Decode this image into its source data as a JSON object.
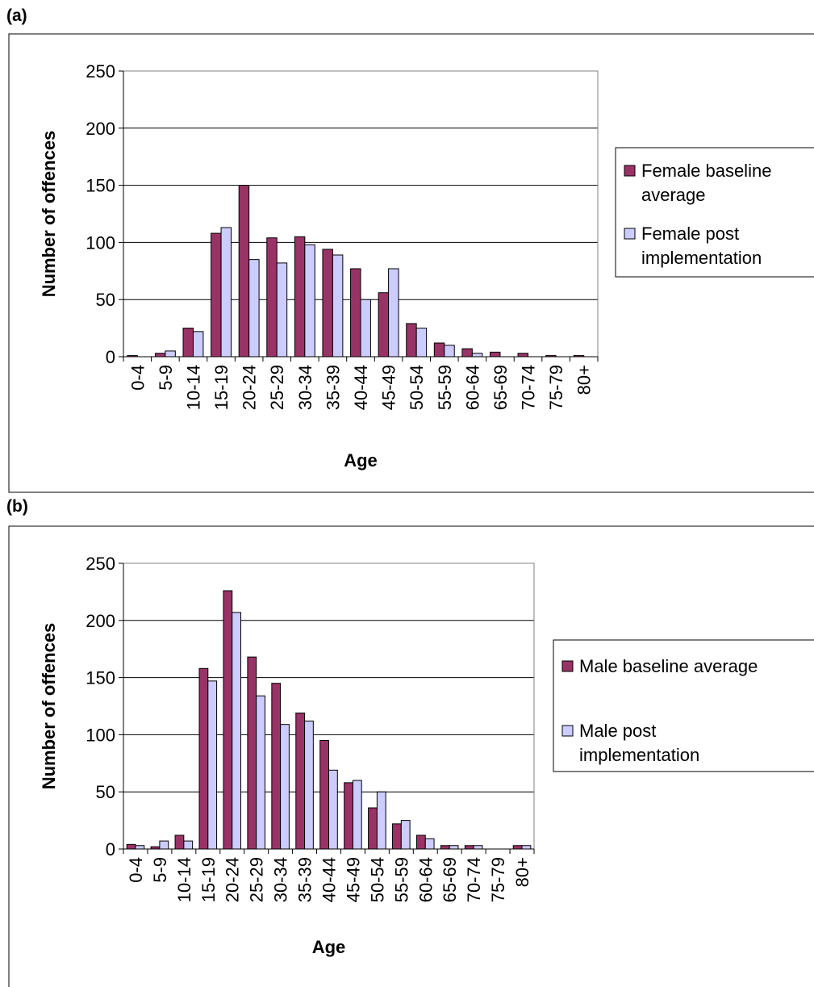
{
  "panels": [
    {
      "label": "(a)"
    },
    {
      "label": "(b)"
    }
  ],
  "chart_data": [
    {
      "type": "bar",
      "title": "",
      "xlabel": "Age",
      "ylabel": "Number of offences",
      "ylim": [
        0,
        250
      ],
      "yticks": [
        "0",
        "50",
        "100",
        "150",
        "200",
        "250"
      ],
      "grid": "horizontal",
      "legend_position": "right",
      "categories": [
        "0-4",
        "5-9",
        "10-14",
        "15-19",
        "20-24",
        "25-29",
        "30-34",
        "35-39",
        "40-44",
        "45-49",
        "50-54",
        "55-59",
        "60-64",
        "65-69",
        "70-74",
        "75-79",
        "80+"
      ],
      "series": [
        {
          "name": "Female baseline average",
          "legend_lines": [
            "Female baseline",
            "average"
          ],
          "color": "#993366",
          "values": [
            1,
            3,
            25,
            108,
            150,
            104,
            105,
            94,
            77,
            56,
            29,
            12,
            7,
            4,
            3,
            1,
            1
          ]
        },
        {
          "name": "Female post implementation",
          "legend_lines": [
            "Female post",
            "implementation"
          ],
          "color": "#CCCCFF",
          "values": [
            0,
            5,
            22,
            113,
            85,
            82,
            98,
            89,
            50,
            77,
            25,
            10,
            3,
            0,
            0,
            0,
            0
          ]
        }
      ]
    },
    {
      "type": "bar",
      "title": "",
      "xlabel": "Age",
      "ylabel": "Number of offences",
      "ylim": [
        0,
        250
      ],
      "yticks": [
        "0",
        "50",
        "100",
        "150",
        "200",
        "250"
      ],
      "grid": "horizontal",
      "legend_position": "right",
      "categories": [
        "0-4",
        "5-9",
        "10-14",
        "15-19",
        "20-24",
        "25-29",
        "30-34",
        "35-39",
        "40-44",
        "45-49",
        "50-54",
        "55-59",
        "60-64",
        "65-69",
        "70-74",
        "75-79",
        "80+"
      ],
      "series": [
        {
          "name": "Male baseline average",
          "legend_lines": [
            "Male baseline average"
          ],
          "color": "#993366",
          "values": [
            4,
            2,
            12,
            158,
            226,
            168,
            145,
            119,
            95,
            58,
            36,
            22,
            12,
            3,
            3,
            0,
            3
          ]
        },
        {
          "name": "Male post implementation",
          "legend_lines": [
            "Male post",
            "implementation"
          ],
          "color": "#CCCCFF",
          "values": [
            3,
            7,
            7,
            147,
            207,
            134,
            109,
            112,
            69,
            60,
            50,
            25,
            9,
            3,
            3,
            0,
            3
          ]
        }
      ]
    }
  ]
}
